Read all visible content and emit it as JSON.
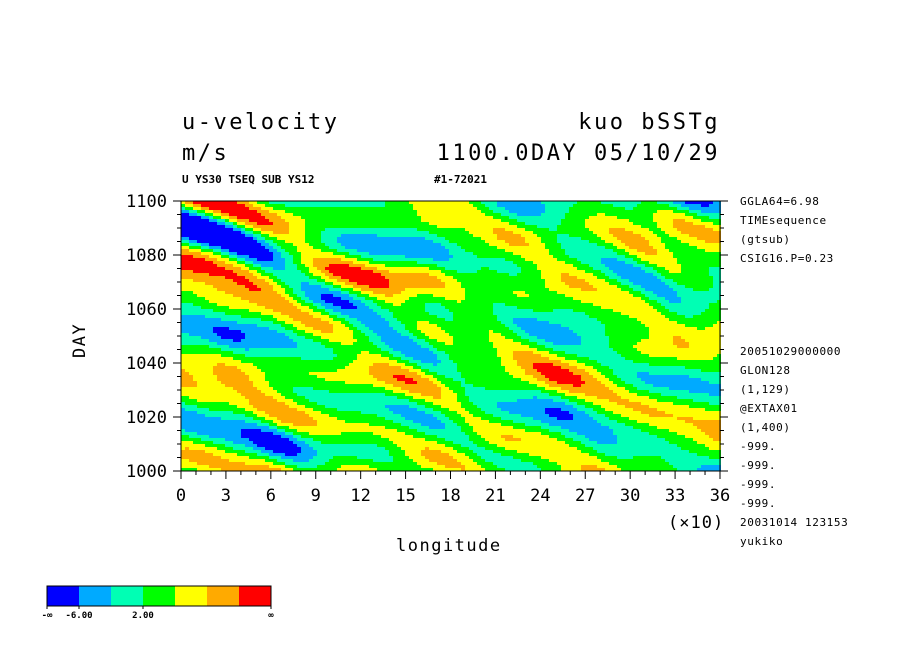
{
  "header": {
    "variable": "u-velocity",
    "units": "m/s",
    "experiment": "kuo bSSTg",
    "time": "1100.0DAY 05/10/29",
    "subtitle": "U YS30 TSEQ SUB YS12",
    "run_id": "#1-72021"
  },
  "side_info": {
    "top": [
      "GGLA64=6.98",
      "TIMEsequence",
      "(gtsub)",
      "CSIG16.P=0.23"
    ],
    "bottom": [
      "20051029000000",
      "GLON128",
      "(1,129)",
      "@EXTAX01",
      "(1,400)",
      "-999.",
      "-999.",
      "-999.",
      "-999.",
      "20031014 123153",
      "yukiko"
    ]
  },
  "colorbar": {
    "colors": [
      "#0000ff",
      "#00aaff",
      "#00ffb4",
      "#00ff00",
      "#ffff00",
      "#ffaa00",
      "#ff0000"
    ],
    "labels": [
      {
        "text": "-∞",
        "edge": 0
      },
      {
        "text": "-6.00",
        "edge": 1
      },
      {
        "text": "2.00",
        "edge": 3
      },
      {
        "text": "∞",
        "edge": 7
      }
    ]
  },
  "chart_data": {
    "type": "heatmap",
    "title": "u-velocity",
    "xlabel": "longitude",
    "ylabel": "DAY",
    "x_ticks": [
      "0",
      "3",
      "6",
      "9",
      "12",
      "15",
      "18",
      "21",
      "24",
      "27",
      "30",
      "33",
      "36"
    ],
    "x_multiplier": "(×10)",
    "xlim": [
      0,
      36
    ],
    "y_ticks": [
      "1000",
      "1020",
      "1040",
      "1060",
      "1080",
      "1100"
    ],
    "ylim": [
      1000,
      1100
    ],
    "levels_colors": [
      "#0000ff",
      "#00aaff",
      "#00ffb4",
      "#00ff00",
      "#ffff00",
      "#ffaa00",
      "#ff0000"
    ],
    "note": "Hovmöller time-longitude field of eastward-tilted (westward-propagating) bands of red/orange and blue anomalies."
  }
}
